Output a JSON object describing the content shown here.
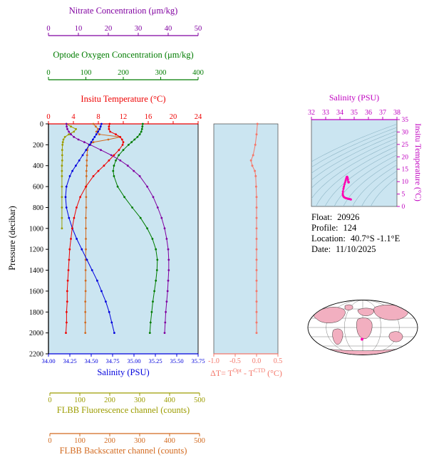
{
  "colors": {
    "nitrate": "#8000A0",
    "oxygen": "#007C00",
    "temperature": "#EE0000",
    "pressure": "#000000",
    "salinity": "#0000DD",
    "fluorescence": "#9C9C00",
    "backscatter": "#D2691E",
    "delta_t": "#F4786B",
    "ts_axis": "#C000C0",
    "ts_curve": "#FF00B0",
    "ts_contour": "#8FB6C6",
    "panel_bg": "#CBE5F1",
    "map_land": "#F2AFC0"
  },
  "info": {
    "float_label": "Float:",
    "float_value": "20926",
    "profile_label": "Profile:",
    "profile_value": "124",
    "location_label": "Location:",
    "location_value": "40.7°S  -1.1°E",
    "date_label": "Date:",
    "date_value": "11/10/2025"
  },
  "chart_data": {
    "type": "line",
    "axes": {
      "nitrate": {
        "title": "Nitrate Concentration (μm/kg)",
        "range": [
          0,
          50
        ],
        "ticks": [
          "0",
          "10",
          "20",
          "30",
          "40",
          "50"
        ]
      },
      "oxygen": {
        "title": "Optode Oxygen Concentration (μm/kg)",
        "range": [
          0,
          400
        ],
        "ticks": [
          "0",
          "100",
          "200",
          "300",
          "400"
        ]
      },
      "temperature": {
        "title": "Insitu Temperature (°C)",
        "range": [
          0,
          24
        ],
        "ticks": [
          "0",
          "4",
          "8",
          "12",
          "16",
          "20",
          "24"
        ]
      },
      "pressure": {
        "title": "Pressure (decibar)",
        "range": [
          0,
          2200
        ],
        "ticks": [
          "0",
          "200",
          "400",
          "600",
          "800",
          "1000",
          "1200",
          "1400",
          "1600",
          "1800",
          "2000",
          "2200"
        ]
      },
      "salinity": {
        "title": "Salinity (PSU)",
        "range": [
          34.0,
          35.75
        ],
        "ticks": [
          "34.00",
          "34.25",
          "34.50",
          "34.75",
          "35.00",
          "35.25",
          "35.50",
          "35.75"
        ]
      },
      "fluorescence": {
        "title": "FLBB Fluorescence channel (counts)",
        "range": [
          0,
          500
        ],
        "ticks": [
          "0",
          "100",
          "200",
          "300",
          "400",
          "500"
        ]
      },
      "backscatter": {
        "title": "FLBB Backscatter channel (counts)",
        "range": [
          0,
          500
        ],
        "ticks": [
          "0",
          "100",
          "200",
          "300",
          "400",
          "500"
        ]
      },
      "delta_t": {
        "title_parts": {
          "pre": "ΔT= T",
          "sup1": "Opt",
          "mid": " - T",
          "sup2": "CTD",
          "post": " (°C)"
        },
        "range": [
          -1.0,
          0.5
        ],
        "ticks": [
          "-1.0",
          "-0.5",
          "0.0",
          "0.5"
        ]
      },
      "ts_salinity": {
        "title": "Salinity (PSU)",
        "range": [
          32,
          38
        ],
        "ticks": [
          "32",
          "33",
          "34",
          "35",
          "36",
          "37",
          "38"
        ]
      },
      "ts_temperature": {
        "title": "Insitu Temperature (°C)",
        "range": [
          0,
          35
        ],
        "ticks": [
          "0",
          "5",
          "10",
          "15",
          "20",
          "25",
          "30",
          "35"
        ]
      }
    },
    "profile": {
      "series": [
        {
          "key": "fluorescence",
          "name": "FLBB Fluorescence channel (counts)",
          "range": [
            0,
            500
          ],
          "pressure": [
            0,
            25,
            50,
            75,
            100,
            125,
            150,
            175,
            200,
            250,
            300,
            350,
            400,
            450,
            500,
            600,
            700,
            800,
            900,
            1000
          ],
          "values": [
            60,
            75,
            92,
            85,
            68,
            55,
            50,
            48,
            47,
            46,
            46,
            46,
            45,
            45,
            45,
            45,
            45,
            45,
            45,
            45
          ]
        },
        {
          "key": "backscatter",
          "name": "FLBB Backscatter channel (counts)",
          "range": [
            0,
            500
          ],
          "pressure": [
            0,
            25,
            50,
            75,
            100,
            125,
            150,
            175,
            200,
            250,
            300,
            350,
            400,
            450,
            500,
            600,
            700,
            800,
            900,
            1000,
            1100,
            1200,
            1300,
            1400,
            1500,
            1600,
            1700,
            1800,
            1900,
            2000
          ],
          "values": [
            150,
            158,
            166,
            160,
            170,
            240,
            200,
            150,
            135,
            130,
            129,
            128,
            128,
            127,
            127,
            126,
            126,
            126,
            125,
            125,
            125,
            125,
            124,
            124,
            124,
            124,
            123,
            123,
            123,
            123
          ]
        },
        {
          "key": "nitrate",
          "name": "Nitrate Concentration (μm/kg)",
          "range": [
            0,
            50
          ],
          "pressure": [
            0,
            25,
            50,
            75,
            100,
            125,
            150,
            175,
            200,
            250,
            300,
            350,
            400,
            450,
            500,
            600,
            700,
            800,
            900,
            1000,
            1100,
            1200,
            1300,
            1400,
            1500,
            1600,
            1700,
            1800,
            1900,
            2000
          ],
          "values": [
            6.0,
            6.1,
            6.3,
            6.8,
            7.5,
            8.5,
            10,
            12,
            14,
            17.5,
            21,
            24,
            26.5,
            28.5,
            30.5,
            33,
            35,
            36.5,
            37.8,
            38.8,
            39.5,
            40,
            40.2,
            40.2,
            40,
            39.8,
            39.5,
            39.2,
            39,
            38.8
          ]
        },
        {
          "key": "oxygen",
          "name": "Optode Oxygen Concentration (μm/kg)",
          "range": [
            0,
            400
          ],
          "pressure": [
            0,
            25,
            50,
            75,
            100,
            125,
            150,
            175,
            200,
            250,
            300,
            350,
            400,
            450,
            500,
            600,
            700,
            800,
            900,
            1000,
            1100,
            1200,
            1300,
            1400,
            1500,
            1600,
            1700,
            1800,
            1900,
            2000
          ],
          "values": [
            252,
            251,
            250,
            248,
            244,
            238,
            230,
            222,
            214,
            200,
            188,
            180,
            175,
            173,
            175,
            185,
            203,
            224,
            246,
            264,
            278,
            287,
            291,
            290,
            287,
            283,
            279,
            276,
            273,
            271
          ]
        },
        {
          "key": "salinity",
          "name": "Salinity (PSU)",
          "range": [
            34.0,
            35.75
          ],
          "pressure": [
            0,
            25,
            50,
            75,
            100,
            125,
            150,
            175,
            200,
            250,
            300,
            350,
            400,
            450,
            500,
            600,
            700,
            800,
            900,
            1000,
            1100,
            1200,
            1300,
            1400,
            1500,
            1600,
            1700,
            1800,
            1900,
            2000
          ],
          "values": [
            34.62,
            34.61,
            34.6,
            34.58,
            34.56,
            34.54,
            34.52,
            34.5,
            34.48,
            34.44,
            34.4,
            34.36,
            34.32,
            34.28,
            34.25,
            34.21,
            34.2,
            34.21,
            34.24,
            34.28,
            34.33,
            34.39,
            34.45,
            34.51,
            34.57,
            34.62,
            34.67,
            34.71,
            34.74,
            34.77
          ]
        },
        {
          "key": "temperature",
          "name": "Insitu Temperature (°C)",
          "range": [
            0,
            24
          ],
          "pressure": [
            0,
            25,
            50,
            75,
            100,
            125,
            150,
            175,
            200,
            250,
            300,
            350,
            400,
            450,
            500,
            600,
            700,
            800,
            900,
            1000,
            1100,
            1200,
            1300,
            1400,
            1500,
            1600,
            1700,
            1800,
            1900,
            2000
          ],
          "values": [
            9.8,
            9.7,
            9.7,
            9.9,
            10.8,
            11.5,
            11.8,
            12.0,
            11.9,
            11.3,
            10.5,
            9.7,
            8.9,
            8.0,
            7.2,
            6.0,
            5.1,
            4.5,
            4.1,
            3.8,
            3.6,
            3.4,
            3.3,
            3.2,
            3.1,
            3.0,
            3.0,
            2.9,
            2.9,
            2.8
          ]
        }
      ]
    },
    "delta_t": {
      "type": "scatter",
      "pressure_dbar": [
        0,
        100,
        200,
        300,
        350,
        400,
        450,
        500,
        600,
        700,
        800,
        900,
        1000,
        1100,
        1200,
        1300,
        1400,
        1500,
        1600,
        1700,
        1800,
        1900,
        2000
      ],
      "values": [
        0.02,
        0.0,
        -0.03,
        -0.08,
        -0.13,
        -0.1,
        -0.04,
        -0.02,
        -0.01,
        0.0,
        0.0,
        0.0,
        0.0,
        0.0,
        0.0,
        0.0,
        0.0,
        0.0,
        0.0,
        0.0,
        0.0,
        0.0,
        0.0
      ]
    },
    "ts_diagram": {
      "type": "line",
      "salinity": [
        34.62,
        34.61,
        34.6,
        34.58,
        34.56,
        34.54,
        34.52,
        34.5,
        34.48,
        34.44,
        34.4,
        34.36,
        34.32,
        34.28,
        34.25,
        34.21,
        34.2,
        34.21,
        34.24,
        34.28,
        34.33,
        34.39,
        34.45,
        34.51,
        34.57,
        34.62,
        34.67,
        34.71,
        34.74,
        34.77
      ],
      "temperature": [
        9.8,
        9.7,
        9.7,
        9.9,
        10.8,
        11.5,
        11.8,
        12.0,
        11.9,
        11.3,
        10.5,
        9.7,
        8.9,
        8.0,
        7.2,
        6.0,
        5.1,
        4.5,
        4.1,
        3.8,
        3.6,
        3.4,
        3.3,
        3.2,
        3.1,
        3.0,
        3.0,
        2.9,
        2.9,
        2.8
      ],
      "isopycnal_sigma_levels": [
        23,
        23.5,
        24,
        24.5,
        25,
        25.5,
        26,
        26.5,
        27,
        27.5,
        28,
        28.5,
        29
      ]
    }
  }
}
